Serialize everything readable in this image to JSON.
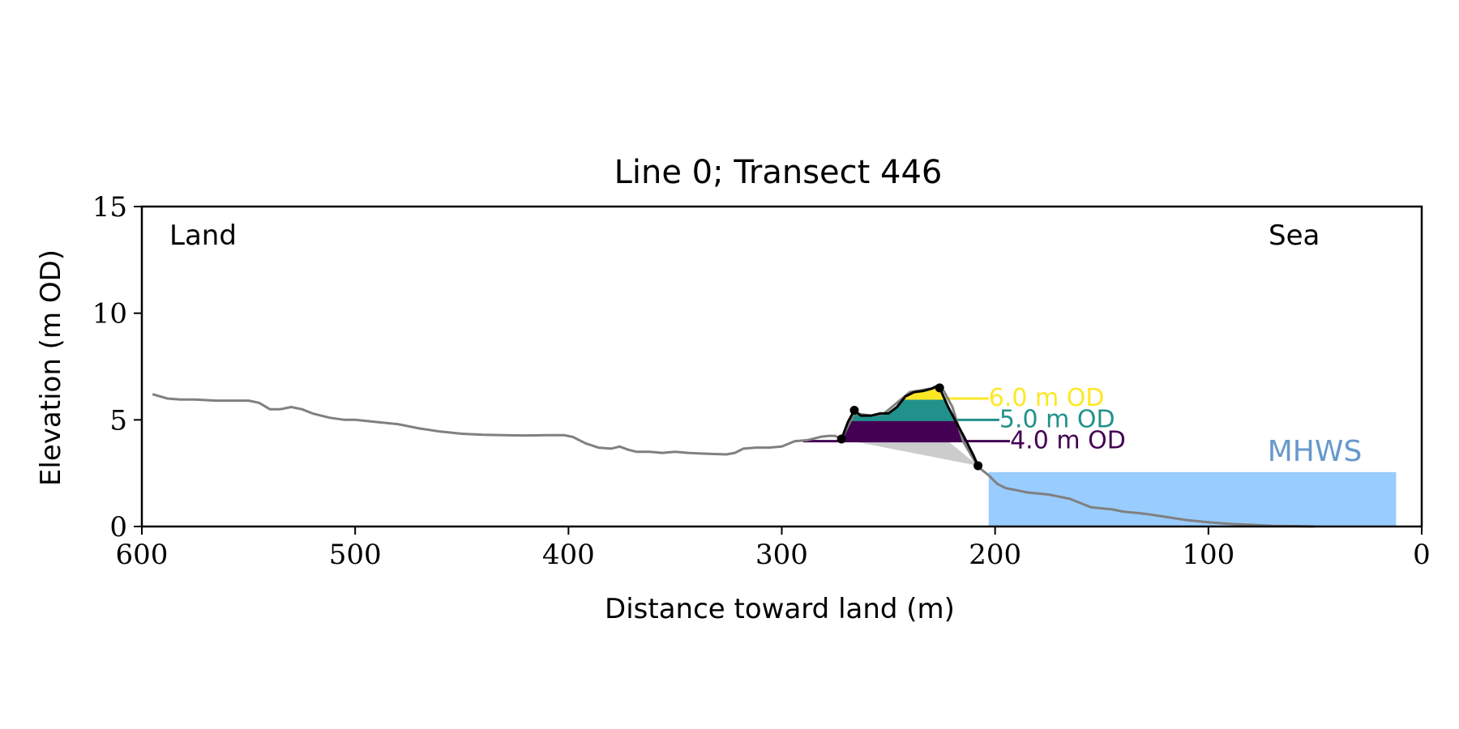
{
  "chart_data": {
    "type": "area",
    "title": "Line 0; Transect 446",
    "xlabel": "Distance toward land (m)",
    "ylabel": "Elevation (m OD)",
    "xlim": [
      600,
      0
    ],
    "ylim": [
      0,
      15
    ],
    "x_inverted": true,
    "xticks": [
      600,
      500,
      400,
      300,
      200,
      100,
      0
    ],
    "xtick_labels": [
      "600",
      "500",
      "400",
      "300",
      "200",
      "100",
      "0"
    ],
    "yticks": [
      0,
      5,
      10,
      15
    ],
    "ytick_labels": [
      "0",
      "5",
      "10",
      "15"
    ],
    "grid": false,
    "corner_labels": {
      "left": "Land",
      "right": "Sea"
    },
    "colors": {
      "profile": "#808080",
      "dune_outline": "#000000",
      "erosion_wedge": "#cccccc",
      "sea": "#99ccff",
      "mhws_label": "#6699cc",
      "level_4": "#440154",
      "level_5": "#21918c",
      "level_6": "#fde725"
    },
    "profile": {
      "x": [
        595,
        588,
        582,
        575,
        565,
        555,
        550,
        545,
        540,
        535,
        530,
        525,
        520,
        512,
        505,
        500,
        490,
        480,
        470,
        460,
        450,
        440,
        430,
        420,
        410,
        402,
        398,
        392,
        386,
        380,
        376,
        372,
        368,
        362,
        356,
        350,
        344,
        338,
        332,
        326,
        322,
        318,
        312,
        306,
        300,
        294,
        288,
        282,
        278,
        275,
        272,
        266,
        258,
        252,
        246,
        240,
        234,
        228,
        224,
        220,
        215,
        208,
        203,
        199,
        195,
        190,
        185,
        180,
        175,
        170,
        165,
        160,
        155,
        150,
        145,
        140,
        135,
        130,
        120,
        110,
        100,
        90,
        80,
        70,
        60,
        50
      ],
      "y": [
        6.2,
        6.0,
        5.95,
        5.95,
        5.9,
        5.9,
        5.9,
        5.8,
        5.5,
        5.5,
        5.6,
        5.5,
        5.3,
        5.1,
        5.0,
        5.0,
        4.9,
        4.8,
        4.6,
        4.45,
        4.35,
        4.3,
        4.28,
        4.27,
        4.28,
        4.28,
        4.2,
        3.9,
        3.7,
        3.65,
        3.75,
        3.6,
        3.5,
        3.5,
        3.45,
        3.5,
        3.45,
        3.42,
        3.4,
        3.38,
        3.45,
        3.65,
        3.7,
        3.7,
        3.75,
        4.0,
        4.05,
        4.2,
        4.25,
        4.25,
        4.1,
        5.3,
        5.2,
        5.3,
        5.8,
        6.3,
        6.4,
        6.5,
        6.35,
        5.6,
        4.0,
        2.8,
        2.4,
        2.0,
        1.8,
        1.7,
        1.6,
        1.55,
        1.5,
        1.4,
        1.3,
        1.1,
        0.9,
        0.85,
        0.8,
        0.7,
        0.65,
        0.6,
        0.45,
        0.3,
        0.2,
        0.12,
        0.08,
        0.03,
        0.02,
        0.0
      ]
    },
    "dune_outline": {
      "x": [
        272,
        269,
        266,
        263,
        258,
        254,
        250,
        246,
        242,
        238,
        234,
        230,
        227,
        226,
        222,
        218,
        214,
        210,
        208
      ],
      "y": [
        4.1,
        4.9,
        5.45,
        5.2,
        5.2,
        5.3,
        5.3,
        5.6,
        6.1,
        6.3,
        6.35,
        6.45,
        6.6,
        6.5,
        5.6,
        4.85,
        4.1,
        3.3,
        2.85
      ]
    },
    "dune_vertices": [
      {
        "x": 272,
        "y": 4.1
      },
      {
        "x": 266,
        "y": 5.45
      },
      {
        "x": 226,
        "y": 6.5
      },
      {
        "x": 208,
        "y": 2.85
      }
    ],
    "erosion_wedge": {
      "x": [
        272,
        208,
        222
      ],
      "y": [
        4.1,
        2.85,
        4.0
      ]
    },
    "levels": [
      {
        "label": "4.0 m OD",
        "y": 4.0,
        "line_x": [
          290,
          193
        ],
        "text_x": 193,
        "color_key": "level_4"
      },
      {
        "label": "5.0 m OD",
        "y": 5.0,
        "line_x": [
          268,
          198
        ],
        "text_x": 198,
        "color_key": "level_5"
      },
      {
        "label": "6.0 m OD",
        "y": 6.0,
        "line_x": [
          244,
          203
        ],
        "text_x": 203,
        "color_key": "level_6"
      }
    ],
    "sea": {
      "label": "MHWS",
      "elevation": 2.55,
      "x_from": 203,
      "x_to": 12
    }
  }
}
